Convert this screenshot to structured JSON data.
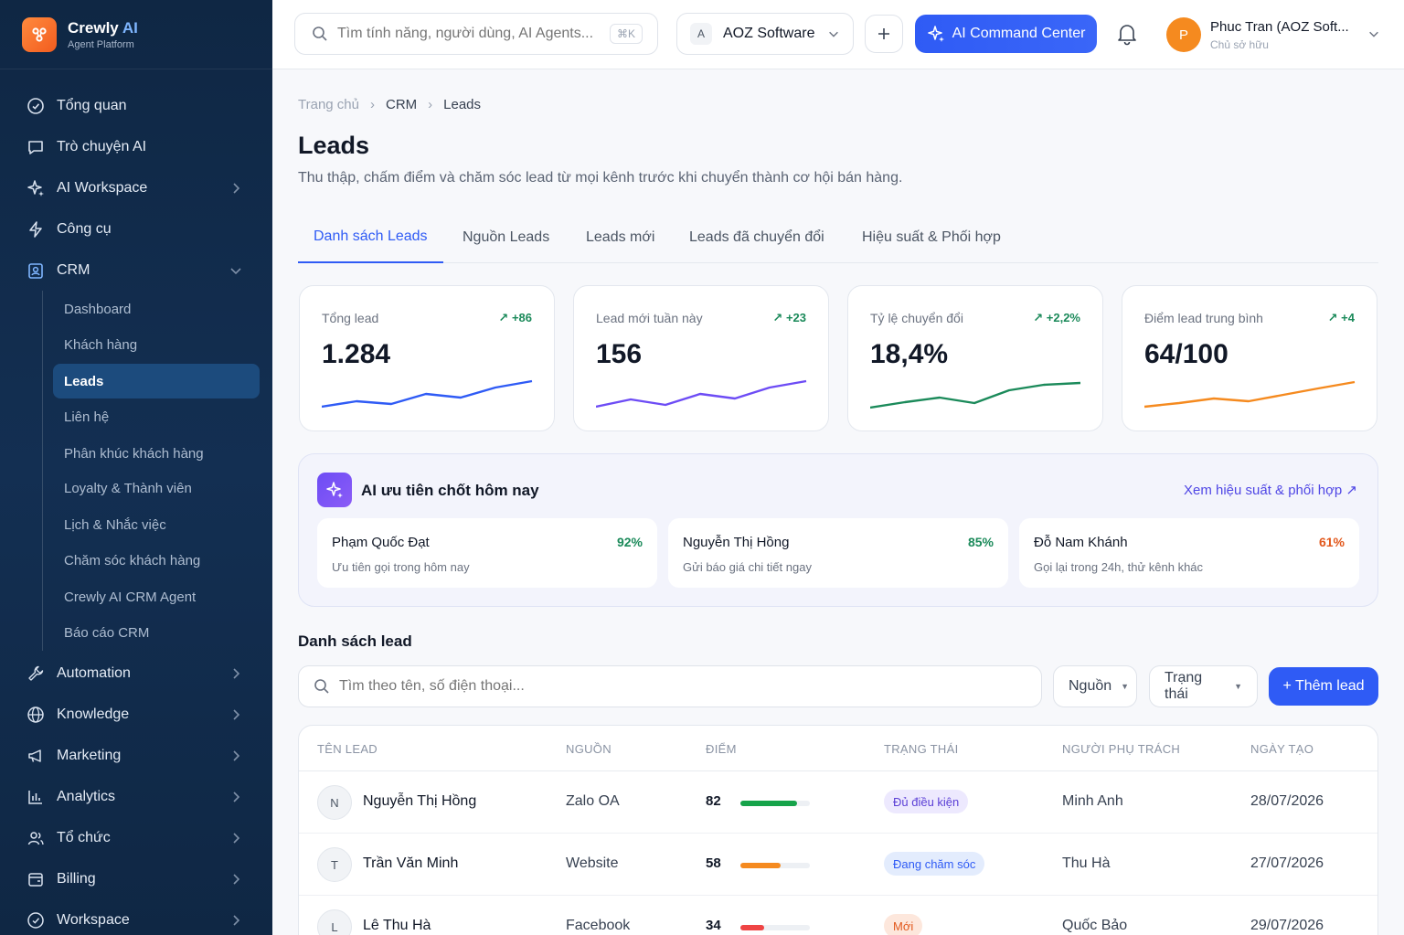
{
  "brand": {
    "name": "Crewly",
    "name_ai": "AI",
    "subtitle": "Agent Platform"
  },
  "sidebar": {
    "items": [
      {
        "label": "Tổng quan",
        "icon": "dashboard-icon"
      },
      {
        "label": "Trò chuyện AI",
        "icon": "chat-icon"
      },
      {
        "label": "AI Workspace",
        "icon": "sparkle-icon"
      },
      {
        "label": "Công cụ",
        "icon": "lightning-icon"
      },
      {
        "label": "CRM",
        "icon": "contact-icon"
      },
      {
        "label": "Automation",
        "icon": "wrench-icon"
      },
      {
        "label": "Knowledge",
        "icon": "globe-icon"
      },
      {
        "label": "Marketing",
        "icon": "megaphone-icon"
      },
      {
        "label": "Analytics",
        "icon": "chart-icon"
      },
      {
        "label": "Tổ chức",
        "icon": "users-icon"
      },
      {
        "label": "Billing",
        "icon": "billing-icon"
      },
      {
        "label": "Workspace",
        "icon": "workspace-icon"
      }
    ],
    "crm_sub": [
      "Dashboard",
      "Khách hàng",
      "Leads",
      "Liên hệ",
      "Phân khúc khách hàng",
      "Loyalty & Thành viên",
      "Lịch & Nhắc việc",
      "Chăm sóc khách hàng",
      "Crewly AI CRM Agent",
      "Báo cáo CRM"
    ]
  },
  "topbar": {
    "search_placeholder": "Tìm tính năng, người dùng, AI Agents...",
    "shortcut": "⌘K",
    "org_badge": "A",
    "org_name": "AOZ Software",
    "ai_button": "AI Command Center",
    "user_initial": "P",
    "user_name": "Phuc Tran (AOZ Soft...",
    "user_role": "Chủ sở hữu"
  },
  "breadcrumb": [
    "Trang chủ",
    "CRM",
    "Leads"
  ],
  "page": {
    "title": "Leads",
    "description": "Thu thập, chấm điểm và chăm sóc lead từ mọi kênh trước khi chuyển thành cơ hội bán hàng."
  },
  "tabs": [
    "Danh sách Leads",
    "Nguồn Leads",
    "Leads mới",
    "Leads đã chuyển đổi",
    "Hiệu suất & Phối hợp"
  ],
  "stats": [
    {
      "label": "Tổng lead",
      "delta": "+86",
      "value": "1.284",
      "color": "#2f5bf5"
    },
    {
      "label": "Lead mới tuần này",
      "delta": "+23",
      "value": "156",
      "color": "#6d4cf5"
    },
    {
      "label": "Tỷ lệ chuyển đổi",
      "delta": "+2,2%",
      "value": "18,4%",
      "color": "#1b8a5a"
    },
    {
      "label": "Điểm lead trung bình",
      "delta": "+4",
      "value": "64/100",
      "color": "#f58a1f"
    }
  ],
  "ai_priority": {
    "title": "AI ưu tiên chốt hôm nay",
    "link": "Xem hiệu suất & phối hợp",
    "cards": [
      {
        "name": "Phạm Quốc Đạt",
        "percent": "92%",
        "hint": "Ưu tiên gọi trong hôm nay",
        "color": "#1b8a5a"
      },
      {
        "name": "Nguyễn Thị Hồng",
        "percent": "85%",
        "hint": "Gửi báo giá chi tiết ngay",
        "color": "#1b8a5a"
      },
      {
        "name": "Đỗ Nam Khánh",
        "percent": "61%",
        "hint": "Gọi lại trong 24h, thử kênh khác",
        "color": "#e2581c"
      }
    ]
  },
  "lead_list": {
    "title": "Danh sách lead",
    "search_placeholder": "Tìm theo tên, số điện thoại...",
    "filter_source": "Nguồn",
    "filter_status": "Trạng thái",
    "add_button": "+ Thêm lead",
    "columns": [
      "TÊN LEAD",
      "NGUỒN",
      "ĐIỂM",
      "TRẠNG THÁI",
      "NGƯỜI PHỤ TRÁCH",
      "NGÀY TẠO"
    ],
    "rows": [
      {
        "initial": "N",
        "name": "Nguyễn Thị Hồng",
        "source": "Zalo OA",
        "score": 82,
        "status": "Đủ điều kiện",
        "status_bg": "#ede9fe",
        "status_fg": "#5b3fd6",
        "bar_color": "#16a34a",
        "owner": "Minh Anh",
        "date": "28/07/2026"
      },
      {
        "initial": "T",
        "name": "Trần Văn Minh",
        "source": "Website",
        "score": 58,
        "status": "Đang chăm sóc",
        "status_bg": "#e3ecfd",
        "status_fg": "#2f5bf5",
        "bar_color": "#f58a1f",
        "owner": "Thu Hà",
        "date": "27/07/2026"
      },
      {
        "initial": "L",
        "name": "Lê Thu Hà",
        "source": "Facebook",
        "score": 34,
        "status": "Mới",
        "status_bg": "#fde7dc",
        "status_fg": "#e2581c",
        "bar_color": "#ef4444",
        "owner": "Quốc Bảo",
        "date": "29/07/2026"
      }
    ]
  }
}
